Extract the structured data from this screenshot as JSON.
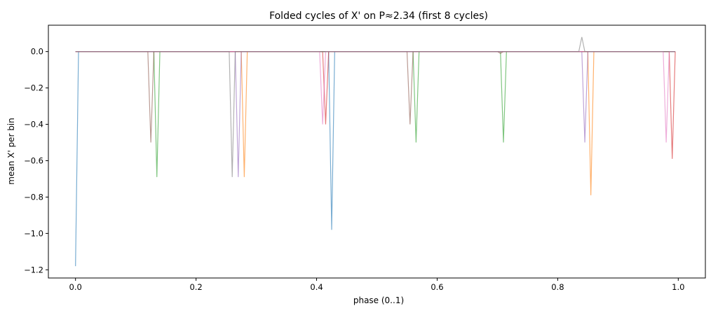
{
  "chart_data": {
    "type": "line",
    "title": "Folded cycles of X' on P≈2.34 (first 8 cycles)",
    "xlabel": "phase (0..1)",
    "ylabel": "mean X' per bin",
    "xlim": [
      -0.045,
      1.045
    ],
    "ylim": [
      -1.245,
      0.145
    ],
    "xticks": [
      0.0,
      0.2,
      0.4,
      0.6,
      0.8,
      1.0
    ],
    "xtick_labels": [
      "0.0",
      "0.2",
      "0.4",
      "0.6",
      "0.8",
      "1.0"
    ],
    "yticks": [
      0.0,
      -0.2,
      -0.4,
      -0.6,
      -0.8,
      -1.0,
      -1.2
    ],
    "ytick_labels": [
      "0.0",
      "−0.2",
      "−0.4",
      "−0.6",
      "−0.8",
      "−1.0",
      "−1.2"
    ],
    "grid": false,
    "legend": false,
    "series": [
      {
        "color": "#1f77b4",
        "points": [
          [
            0.0,
            -1.18
          ],
          [
            0.005,
            0.0
          ],
          [
            0.42,
            0.0
          ],
          [
            0.425,
            -0.98
          ],
          [
            0.43,
            0.0
          ],
          [
            0.995,
            0.0
          ]
        ]
      },
      {
        "color": "#ff7f0e",
        "points": [
          [
            0.0,
            0.0
          ],
          [
            0.275,
            0.0
          ],
          [
            0.28,
            -0.69
          ],
          [
            0.285,
            0.0
          ],
          [
            0.85,
            0.0
          ],
          [
            0.855,
            -0.79
          ],
          [
            0.86,
            0.0
          ],
          [
            0.995,
            0.0
          ]
        ]
      },
      {
        "color": "#2ca02c",
        "points": [
          [
            0.0,
            0.0
          ],
          [
            0.13,
            0.0
          ],
          [
            0.135,
            -0.69
          ],
          [
            0.14,
            0.0
          ],
          [
            0.56,
            0.0
          ],
          [
            0.565,
            -0.5
          ],
          [
            0.57,
            0.0
          ],
          [
            0.705,
            0.0
          ],
          [
            0.71,
            -0.5
          ],
          [
            0.715,
            0.0
          ],
          [
            0.995,
            0.0
          ]
        ]
      },
      {
        "color": "#d62728",
        "points": [
          [
            0.0,
            0.0
          ],
          [
            0.41,
            0.0
          ],
          [
            0.415,
            -0.4
          ],
          [
            0.42,
            0.0
          ],
          [
            0.985,
            0.0
          ],
          [
            0.99,
            -0.59
          ],
          [
            0.995,
            0.0
          ]
        ]
      },
      {
        "color": "#9467bd",
        "points": [
          [
            0.0,
            0.0
          ],
          [
            0.265,
            0.0
          ],
          [
            0.27,
            -0.69
          ],
          [
            0.275,
            0.0
          ],
          [
            0.84,
            0.0
          ],
          [
            0.845,
            -0.5
          ],
          [
            0.85,
            0.0
          ],
          [
            0.995,
            0.0
          ]
        ]
      },
      {
        "color": "#8c564b",
        "points": [
          [
            0.0,
            0.0
          ],
          [
            0.12,
            0.0
          ],
          [
            0.125,
            -0.5
          ],
          [
            0.13,
            0.0
          ],
          [
            0.55,
            0.0
          ],
          [
            0.555,
            -0.4
          ],
          [
            0.56,
            0.0
          ],
          [
            0.7,
            0.0
          ],
          [
            0.705,
            -0.01
          ],
          [
            0.71,
            0.0
          ],
          [
            0.995,
            0.0
          ]
        ]
      },
      {
        "color": "#e377c2",
        "points": [
          [
            0.0,
            0.0
          ],
          [
            0.405,
            0.0
          ],
          [
            0.41,
            -0.4
          ],
          [
            0.415,
            0.0
          ],
          [
            0.975,
            0.0
          ],
          [
            0.98,
            -0.5
          ],
          [
            0.985,
            0.0
          ],
          [
            0.995,
            0.0
          ]
        ]
      },
      {
        "color": "#7f7f7f",
        "points": [
          [
            0.0,
            0.0
          ],
          [
            0.255,
            0.0
          ],
          [
            0.26,
            -0.69
          ],
          [
            0.265,
            0.0
          ],
          [
            0.835,
            0.0
          ],
          [
            0.84,
            0.08
          ],
          [
            0.845,
            0.0
          ],
          [
            0.995,
            0.0
          ]
        ]
      }
    ]
  }
}
